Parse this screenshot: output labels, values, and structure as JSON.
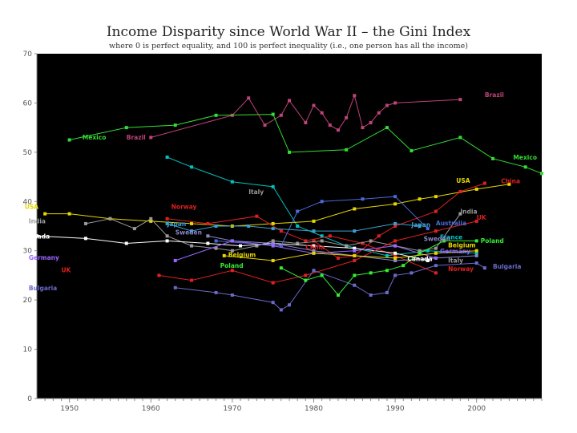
{
  "chart_data": {
    "type": "line",
    "title": "Income Disparity since World War II – the Gini Index",
    "subtitle": "where 0 is perfect equality, and 100 is perfect inequality (i.e., one person has all the income)",
    "xlabel": "",
    "ylabel": "",
    "xlim": [
      1946,
      2008
    ],
    "ylim": [
      0,
      70
    ],
    "xticks": [
      1950,
      1960,
      1970,
      1980,
      1990,
      2000
    ],
    "yticks": [
      0,
      10,
      20,
      30,
      40,
      50,
      60,
      70
    ],
    "grid": false,
    "background": "#000000",
    "series": [
      {
        "name": "Brazil",
        "color": "#c0427a",
        "label": {
          "text": "Brazil",
          "x": 2001,
          "y": 61.2,
          "anchor": "start"
        },
        "x": [
          1960,
          1970,
          1972,
          1974,
          1976,
          1977,
          1979,
          1980,
          1981,
          1982,
          1983,
          1984,
          1985,
          1986,
          1987,
          1988,
          1989,
          1990,
          1998
        ],
        "y": [
          53,
          57.5,
          61,
          55.5,
          57.5,
          60.5,
          56,
          59.5,
          58,
          55.5,
          54.5,
          57,
          61.5,
          55,
          56,
          58,
          59.5,
          60,
          60.7
        ]
      },
      {
        "name": "Mexico",
        "color": "#33dd33",
        "label": {
          "text": "Mexico",
          "x": 1954.5,
          "y": 52.6,
          "anchor": "end"
        },
        "x": [
          1950,
          1957,
          1963,
          1968,
          1975,
          1977,
          1984,
          1989,
          1992,
          1998,
          2002,
          2006,
          2008
        ],
        "y": [
          52.5,
          55,
          55.5,
          57.5,
          57.7,
          50,
          50.5,
          55,
          50.3,
          53,
          48.7,
          47,
          45.7
        ]
      },
      {
        "name": "France",
        "color": "#00c0c0",
        "label": {
          "text": "France",
          "x": 1941.5,
          "y": 48.6,
          "anchor": "end"
        },
        "x": [
          1962,
          1965,
          1970,
          1975,
          1978,
          1981,
          1984,
          1989,
          1994,
          2000
        ],
        "y": [
          49,
          47,
          44,
          43,
          35,
          33,
          31,
          29,
          30,
          29.5
        ]
      },
      {
        "name": "USA",
        "color": "#e6d600",
        "label": {
          "text": "USA",
          "x": 1944.5,
          "y": 38.5,
          "anchor": "start"
        },
        "x": [
          1947,
          1950,
          1955,
          1960,
          1965,
          1970,
          1975,
          1980,
          1985,
          1990,
          1993,
          1995,
          2000,
          2004
        ],
        "y": [
          37.5,
          37.5,
          36.5,
          36,
          35.5,
          35,
          35.5,
          36,
          38.5,
          39.5,
          40.5,
          41,
          42.5,
          43.5
        ]
      },
      {
        "name": "Norway",
        "color": "#e02020",
        "label": {
          "text": "Norway",
          "x": 1962.5,
          "y": 38.5,
          "anchor": "start"
        },
        "x": [
          1962,
          1967,
          1973,
          1976,
          1979,
          1982,
          1986,
          1990,
          1995
        ],
        "y": [
          36.5,
          35.5,
          37,
          34,
          32,
          33,
          31.5,
          29,
          25.5
        ]
      },
      {
        "name": "China",
        "color": "#e02020",
        "label": {
          "text": "China",
          "x": 2003,
          "y": 43.7,
          "anchor": "start"
        },
        "x": [
          1980,
          1983,
          1985,
          1988,
          1990,
          1995,
          1998,
          2001
        ],
        "y": [
          32,
          28.5,
          29,
          33,
          35,
          38,
          42,
          43.7
        ]
      },
      {
        "name": "India",
        "color": "#999999",
        "label": {
          "text": "India",
          "x": 1945,
          "y": 35.6,
          "anchor": "start"
        },
        "x": [
          1952,
          1955,
          1958,
          1960,
          1962,
          1965,
          1968,
          1970,
          1973,
          1975,
          1978,
          1981,
          1984,
          1987,
          1990,
          1993,
          1995,
          1998
        ],
        "y": [
          35.5,
          36.5,
          34.5,
          36.5,
          33,
          31,
          30.5,
          30,
          31,
          32,
          31.5,
          32,
          31,
          32,
          31,
          30,
          30.5,
          37.5
        ]
      },
      {
        "name": "Canada",
        "color": "#ffffff",
        "label": {
          "text": "Canada",
          "x": 1944.5,
          "y": 32.5,
          "anchor": "start"
        },
        "x": [
          1946,
          1952,
          1957,
          1962,
          1967,
          1971,
          1975,
          1980,
          1985,
          1990,
          1994
        ],
        "y": [
          33,
          32.5,
          31.5,
          32,
          31.5,
          31,
          31.5,
          31,
          30.5,
          29.5,
          28
        ]
      },
      {
        "name": "Japan",
        "color": "#3aa0d0",
        "label": {
          "text": "Japan",
          "x": 1962,
          "y": 35,
          "anchor": "start"
        },
        "x": [
          1962,
          1965,
          1968,
          1972,
          1975,
          1980,
          1985,
          1990,
          1993
        ],
        "y": [
          35.5,
          34,
          35,
          35,
          34.5,
          34,
          34,
          35.5,
          35
        ]
      },
      {
        "name": "Sweden",
        "color": "#8888cc",
        "label": {
          "text": "Sweden",
          "x": 1963,
          "y": 33.3,
          "anchor": "start"
        },
        "x": [
          1967,
          1970,
          1975,
          1980,
          1985,
          1990,
          1995,
          2000
        ],
        "y": [
          33,
          32,
          31.5,
          30,
          29,
          28,
          28.5,
          29
        ]
      },
      {
        "name": "Australia",
        "color": "#4a6ad8",
        "label": {
          "text": "Australia",
          "x": 1995,
          "y": 35.2,
          "anchor": "start"
        },
        "x": [
          1968,
          1976,
          1978,
          1981,
          1986,
          1990,
          1994
        ],
        "y": [
          32,
          31,
          38,
          40,
          40.5,
          41,
          34.5
        ]
      },
      {
        "name": "UK",
        "color": "#e02020",
        "label": {
          "text": "UK",
          "x": 1949,
          "y": 25.6,
          "anchor": "start"
        },
        "x": [
          1961,
          1965,
          1970,
          1975,
          1979,
          1985,
          1990,
          1995,
          2000
        ],
        "y": [
          25,
          24,
          26,
          23.5,
          25,
          28,
          32,
          34,
          36
        ]
      },
      {
        "name": "Germany",
        "color": "#9966ff",
        "label": {
          "text": "Germany",
          "x": 1945,
          "y": 28.2,
          "anchor": "start"
        },
        "x": [
          1963,
          1970,
          1975,
          1980,
          1985,
          1990,
          1995
        ],
        "y": [
          28,
          32,
          31,
          29.5,
          30,
          31,
          28.5
        ]
      },
      {
        "name": "Bulgaria",
        "color": "#6a6acc",
        "label": {
          "text": "Bulgaria",
          "x": 1945,
          "y": 22,
          "anchor": "start"
        },
        "x": [
          1963,
          1968,
          1970,
          1975,
          1976,
          1977,
          1980,
          1985,
          1987,
          1989,
          1990,
          1992,
          1995,
          2000,
          2001
        ],
        "y": [
          22.5,
          21.5,
          21,
          19.5,
          18,
          19,
          26,
          23,
          21,
          21.5,
          25,
          25.5,
          27,
          27.5,
          26.5
        ]
      },
      {
        "name": "Poland",
        "color": "#33ee33",
        "label": {
          "text": "Poland",
          "x": 1968.5,
          "y": 26.5,
          "anchor": "start"
        },
        "x": [
          1976,
          1979,
          1981,
          1983,
          1985,
          1987,
          1989,
          1991,
          1993,
          1996,
          2000
        ],
        "y": [
          26.5,
          24,
          25,
          21,
          25,
          25.5,
          26,
          27,
          29.5,
          32,
          32
        ]
      },
      {
        "name": "Belgium",
        "color": "#e6d600",
        "label": {
          "text": "Belgium",
          "x": 1969.5,
          "y": 28.7,
          "anchor": "start"
        },
        "x": [
          1969,
          1975,
          1980,
          1985,
          1990,
          1995,
          2000
        ],
        "y": [
          29,
          28,
          29.5,
          29,
          28.5,
          29.5,
          30
        ]
      }
    ],
    "annotations": [
      {
        "text": "Mexico",
        "x": 2004.5,
        "y": 48.5,
        "color": "#33dd33",
        "anchor": "start"
      },
      {
        "text": "Brazil",
        "x": 1957,
        "y": 52.6,
        "color": "#c0427a",
        "anchor": "start"
      },
      {
        "text": "USA",
        "x": 1997.5,
        "y": 43.8,
        "color": "#e6d600",
        "anchor": "start"
      },
      {
        "text": "Italy",
        "x": 1972,
        "y": 41.5,
        "color": "#999999",
        "anchor": "start"
      },
      {
        "text": "India",
        "x": 1998,
        "y": 37.5,
        "color": "#999999",
        "anchor": "start"
      },
      {
        "text": "UK",
        "x": 2000,
        "y": 36.3,
        "color": "#e02020",
        "anchor": "start"
      },
      {
        "text": "Japan",
        "x": 1992,
        "y": 34.8,
        "color": "#3aa0d0",
        "anchor": "start"
      },
      {
        "text": "France",
        "x": 1995.5,
        "y": 32.3,
        "color": "#00c0c0",
        "anchor": "start"
      },
      {
        "text": "Poland",
        "x": 2000.5,
        "y": 31.6,
        "color": "#33ee33",
        "anchor": "start"
      },
      {
        "text": "Sweden",
        "x": 1993.5,
        "y": 32,
        "color": "#8888cc",
        "anchor": "start"
      },
      {
        "text": "Germany",
        "x": 1995.5,
        "y": 29.5,
        "color": "#9966ff",
        "anchor": "start"
      },
      {
        "text": "Belgium",
        "x": 1996.5,
        "y": 30.7,
        "color": "#e6d600",
        "anchor": "start"
      },
      {
        "text": "Italy",
        "x": 1996.5,
        "y": 27.6,
        "color": "#999999",
        "anchor": "start"
      },
      {
        "text": "Canada",
        "x": 1991.5,
        "y": 27.9,
        "color": "#ffffff",
        "anchor": "start"
      },
      {
        "text": "Norway",
        "x": 1996.5,
        "y": 25.9,
        "color": "#e02020",
        "anchor": "start"
      },
      {
        "text": "China",
        "x": 1979,
        "y": 30.3,
        "color": "#e02020",
        "anchor": "start"
      },
      {
        "text": "Bulgaria",
        "x": 2002,
        "y": 26.4,
        "color": "#6a6acc",
        "anchor": "start"
      }
    ]
  }
}
